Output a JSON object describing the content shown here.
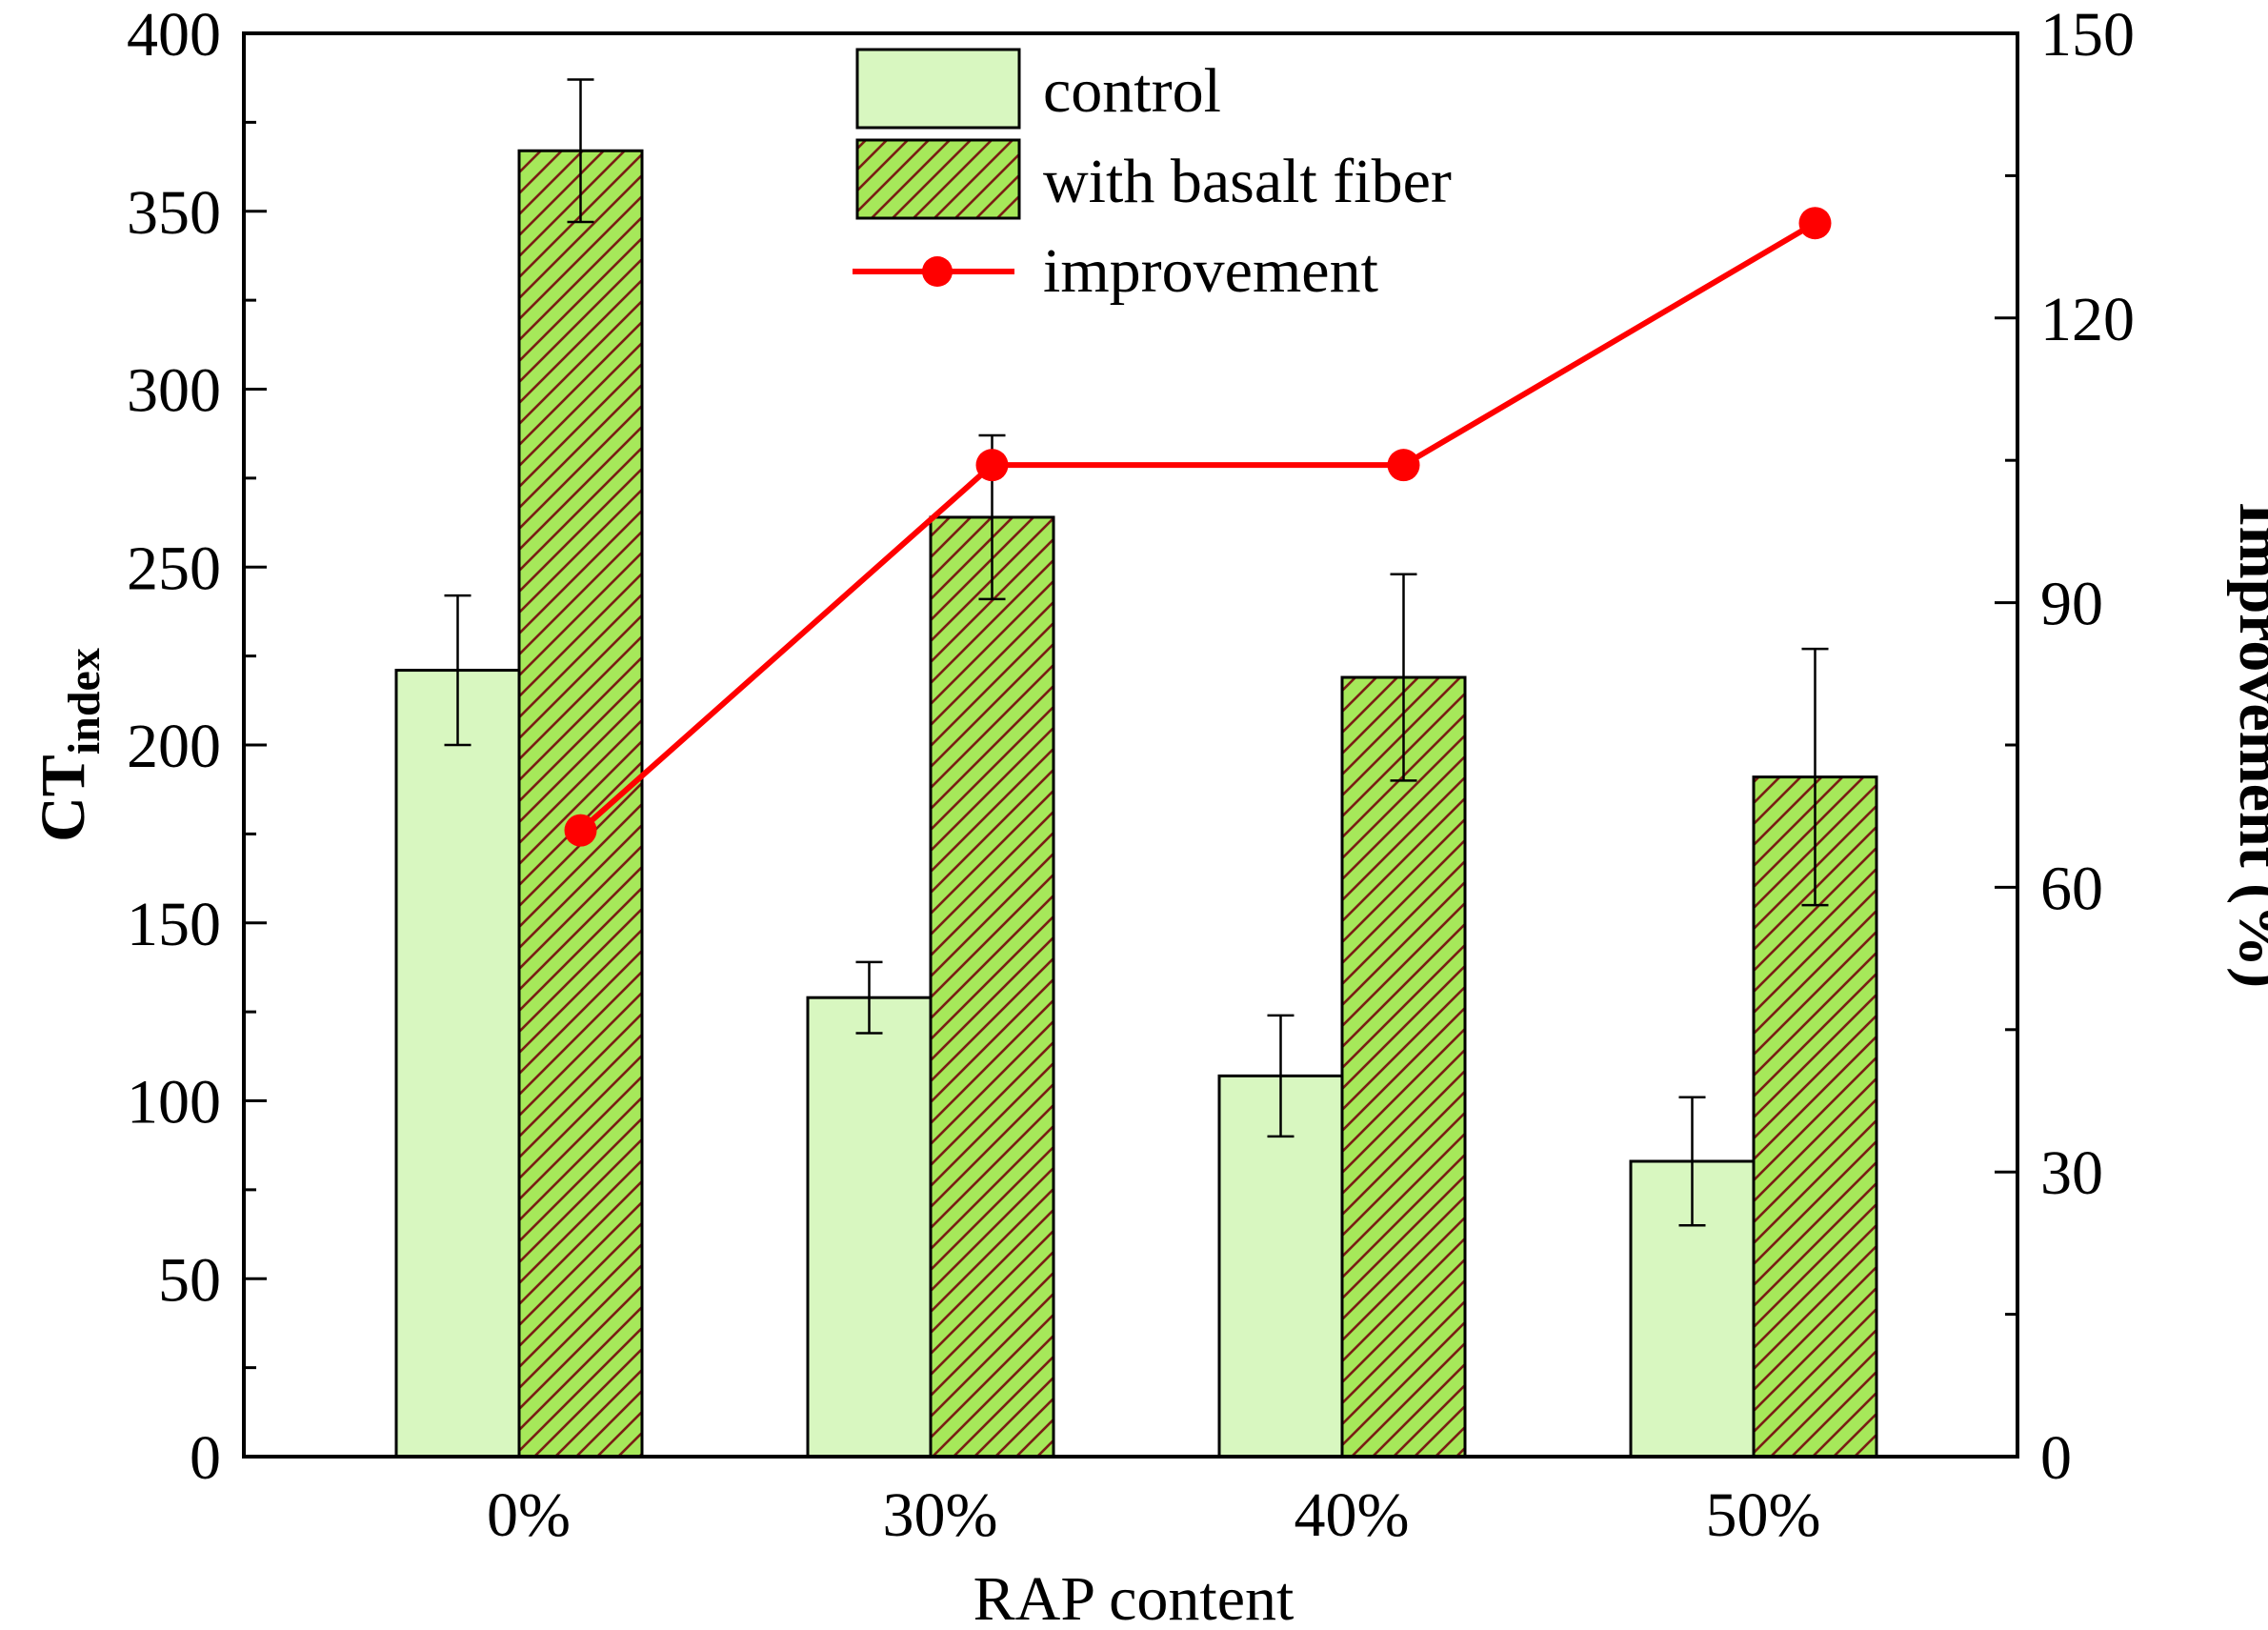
{
  "chart_data": {
    "type": "bar",
    "categories": [
      "0%",
      "30%",
      "40%",
      "50%"
    ],
    "series": [
      {
        "name": "control",
        "axis": "left",
        "values": [
          221,
          129,
          107,
          83
        ],
        "errors": [
          21,
          10,
          17,
          18
        ],
        "color": "#d8f7c0"
      },
      {
        "name": "with basalt fiber",
        "axis": "left",
        "values": [
          367,
          264,
          219,
          191
        ],
        "errors": [
          20,
          23,
          29,
          36
        ],
        "color": "#a6e85a",
        "pattern": "hatch",
        "hatch_color": "#7a1f14"
      },
      {
        "name": "improvement",
        "type": "line",
        "axis": "right",
        "values": [
          66,
          104.5,
          104.5,
          130
        ],
        "color": "#ff0000"
      }
    ],
    "xlabel": "RAP content",
    "ylabel": "CT",
    "ylabel_subscript": "index",
    "ylabel_right": "Improvement (%)",
    "ylim": [
      0,
      400
    ],
    "ylim_right": [
      0,
      150
    ],
    "yticks": [
      "0",
      "50",
      "100",
      "150",
      "200",
      "250",
      "300",
      "350",
      "400"
    ],
    "yticks_right": [
      "0",
      "30",
      "60",
      "90",
      "120",
      "150"
    ],
    "legend": "top-center",
    "grid": false
  }
}
